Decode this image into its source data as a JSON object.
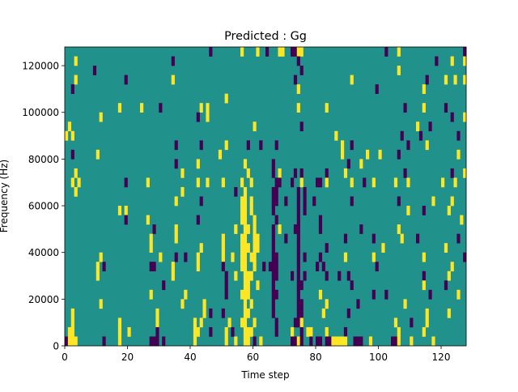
{
  "chart_data": {
    "type": "heatmap",
    "title": "Predicted : Gg",
    "xlabel": "Time step",
    "ylabel": "Frequency (Hz)",
    "xlim": [
      0,
      128
    ],
    "ylim": [
      0,
      128000
    ],
    "x_ticks": [
      "0",
      "20",
      "40",
      "60",
      "80",
      "100",
      "120"
    ],
    "x_tick_values": [
      0,
      20,
      40,
      60,
      80,
      100,
      120
    ],
    "y_ticks": [
      "0",
      "20000",
      "40000",
      "60000",
      "80000",
      "100000",
      "120000"
    ],
    "y_tick_values": [
      0,
      20000,
      40000,
      60000,
      80000,
      100000,
      120000
    ],
    "n_cols": 128,
    "n_rows": 32,
    "legend": "none",
    "colors": {
      ".": "#21918c",
      "y": "#fde725",
      "p": "#440154"
    },
    "value_legend": {
      ".": 0,
      "y": 1,
      "p": -1
    },
    "rows_top_to_bottom": [
      "........ ........ ........ ........ ........ ......p. ........ y....y.. p...yy.. ppyy.... ........ ........ ......p. ..y..... ........ .......p",
      "...y.... ........ ........ ........ ..p..... ........ ........ ........ ........ ..p..... ........ ........ ........ ........ ......p. ...y...y",
      "........ .p...... ........ ........ ........ ........ ........ ........ ........ ...p.... ........ ........ ........ ..y..... ........ ........",
      "...y.... ........ ...p.... ........ ..y..... ........ ........ ........ ........ .p...... ........ ...y.... ........ ........ ...p.... .y..y..y",
      "..p..... ........ ........ ........ ........ ........ ........ ........ ........ ..y..... ........ ........ ...p.... ........ ..y..... ........",
      "........ ........ ........ ........ ........ ........ ...y.... ........ ........ ........ ........ ........ ........ ........ ........ ........",
      "........ ........ .y...... y.....p. ........ ...y.y.. ........ ........ ........ ..y..... ...y.... ........ ........ ....p... ..y..... .p......",
      "........ ...y.... ........ ........ ........ ..p..y.. ........ ........ ........ ........ ........ ........ ........ ........ ........ ...p...y",
      ".y...... ........ ........ ........ ........ ........ ........ ....y... ........ ...p.... ........ ........ ........ ........ y...p... ........",
      "y.y..... ........ ........ ........ ........ ........ ........ ........ ........ ........ ......y. ........ ........ ...p.... .p...... .....p..",
      "........ ........ ........ ........ ...p.... ...p.... ...y.... ..p...p. ...p.... ........ ........ y..p.... ........ .....p.. ...y.... ........",
      "..p..... ..y..... ........ ........ ........ ........ .y...... ........ ........ ........ ........ y....... y...y... ..p..... ........ .....y..",
      "........ ........ ........ ........ ...p.... ..y..... ........ .y...... ..p..... ........ ........ ..p...y. ........ ........ ........ ........",
      "...y.... ........ ........ ........ .....y.. ........ ........ ..y..... ..p.y... .p.p.... ...p.... .y...... ........ ....p... ........ ...p...y",
      "..y.y... ........ ...p.... ..y..... ........ ..y..y.. ..y..... y..y.... ...pp... p..y.... pp.y.... ...y...p ..y..... .y...y.. ........ y...y...",
      "...y.... ........ ........ ........ .....y.. ........ ......p. .y...... ..pp.... ..p.p... ........ ........ ........ ........ ........ ........",
      "........ ........ ........ ........ ...y.... ...p.... ........ yy.y.... ..pp..p. ..p.p..p ........ ...p.... ........ ..p..... .....y.. ...y....",
      "........ ........ .y.y.... ........ ........ ........ ........ yy.y.... ..p..... ..p.p... ........ ........ ........ .....y.. ..p..... ..y.....",
      "........ ........ ...p.... ..y..... ........ ..p..... ........ yy..y... ...p.... ..p..... .p...... ........ ........ ........ ........ ......y.",
      "........ ........ ........ ....p... ...y.... ........ ......y. .yy.y... ..p.y... .pp..... .p...... ......p. ........ ..y..... ........ ........",
      "........ ........ ........ ...y.... ...y.... ........ ..y..... yy..yy.. ..p...p. ..p..... ........ .p...... ..p..... ...y.... p....... .....p..",
      "........ ........ ........ ...y.... ........ ...y.... ..y..... yyy.yy.. ..p..... ..p..... ...p.... ........ .....y.. ........ ........ .y......",
      "........ ...y.... ........ ......y. ...p..p. ..y..... ..y..y.. yy.yy... ..pp.... ..p.p... .p...... .y...... ..y..... ........ ..y..... .......p",
      "........ ..y.p... ........ ...pp... ..y..... ..y..... ..p..... yy..y..p .ppp.... ..p..... p.p..... ........ ...p.... ........ ........ ...y....",
      "........ ..y..... ........ ........ ..y..... ........ ...p..y. .yyy.... ..pp.... p.p.p... ...p...p ..p..... ........ ........ ..p..... ..y.....",
      "........ ........ ........ .......p ........ ........ ...p.... .yy..y.. ..p..... ..pp.... ........ ...p.... ........ ........ ..y..... .p......",
      "........ ........ ........ ...y.... ......y. ........ ...p.... yyy..... ..pp.... ..p..... .y...... ........ ..p...p. ........ ....p... .....y..",
      "........ ...y.... ........ ........ .....y.. ....y... ........ .y.y.... ..p..... ..pp.... ...y.... .....p.. ........ ....y... ........ ........",
      "..y..... ........ ........ .....y.. ........ ....y.p. ..p..... .yy..... ..p..... ..pp.... ..y..... ..p..... ........ ........ ...y.... ..y.....",
      "..y..... ........ .y...... .....y.. ........ .y.y.... ....y... yy..y... ...p.... .ppy.... ........ ........ ........ .y....p. ...y.... ........",
      ".yy..... ........ .y..y... .....p.. ........ .yy...p. ...y.p.. .yyy.... ...p.... y..p.yy. ...y.... .p...... ........ ..y..... ..y..... ........",
      "pyyy.... ....p... .y...... ...ppp.p ........ .y...... ...y..y. .yy.p.y. ........ ppyp..p. pp.ppyyy yy..ppp. .y...... ppy...y. .....y.. ........"
    ]
  }
}
